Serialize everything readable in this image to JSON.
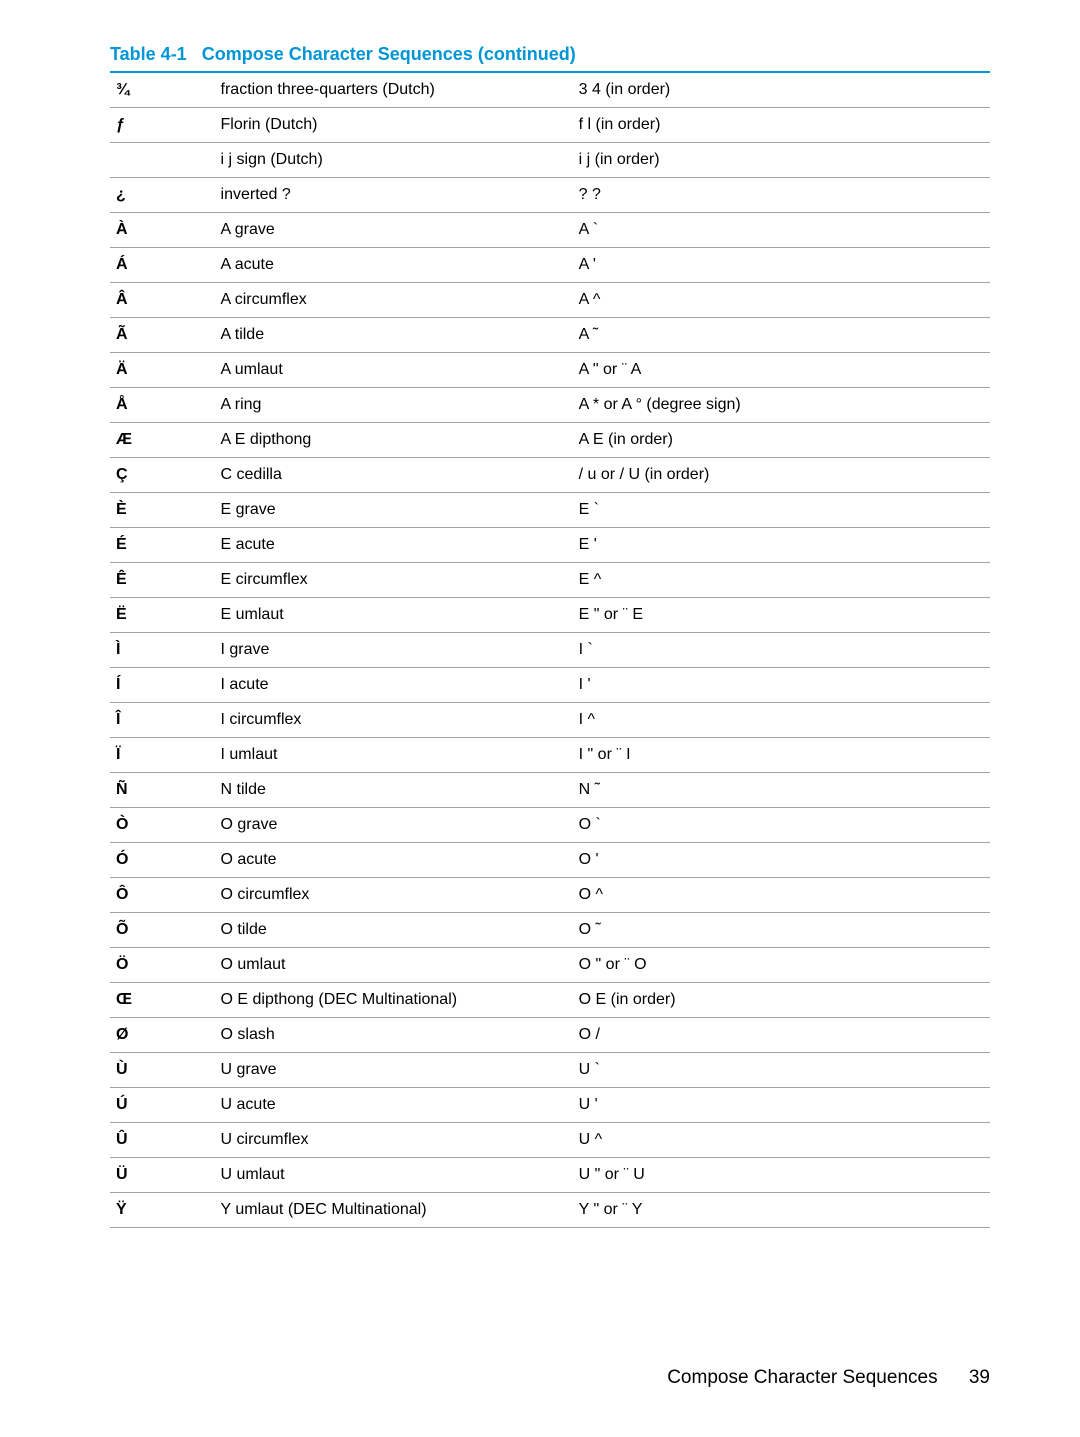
{
  "caption": {
    "label": "Table 4-1",
    "title": "Compose Character Sequences (continued)",
    "color": "#0096d6"
  },
  "table": {
    "border_color": "#9fa5a9",
    "header_border_color": "#0096d6",
    "columns": [
      "char",
      "name",
      "sequence"
    ],
    "rows": [
      {
        "char": "¾",
        "name": "fraction three-quarters (Dutch)",
        "seq": "3 4 (in order)"
      },
      {
        "char": "ƒ",
        "name": "Florin (Dutch)",
        "seq": "f l (in order)"
      },
      {
        "char": "",
        "name": "i j sign (Dutch)",
        "seq": "i j (in order)"
      },
      {
        "char": "¿",
        "name": "inverted ?",
        "seq": "? ?"
      },
      {
        "char": "À",
        "name": "A grave",
        "seq": "A `"
      },
      {
        "char": "Á",
        "name": "A acute",
        "seq": "A '"
      },
      {
        "char": "Â",
        "name": "A circumflex",
        "seq": "A ^"
      },
      {
        "char": "Ã",
        "name": "A tilde",
        "seq": "A ˜"
      },
      {
        "char": "Ä",
        "name": "A umlaut",
        "seq": "A \" or ¨ A"
      },
      {
        "char": "Å",
        "name": "A ring",
        "seq": "A * or A ° (degree sign)"
      },
      {
        "char": "Æ",
        "name": "A E dipthong",
        "seq": "A E (in order)"
      },
      {
        "char": "Ç",
        "name": "C cedilla",
        "seq": "/ u or / U (in order)"
      },
      {
        "char": "È",
        "name": "E grave",
        "seq": "E `"
      },
      {
        "char": "É",
        "name": "E acute",
        "seq": "E '"
      },
      {
        "char": "Ê",
        "name": "E circumflex",
        "seq": "E ^"
      },
      {
        "char": "Ë",
        "name": "E umlaut",
        "seq": "E \" or ¨ E"
      },
      {
        "char": "Ì",
        "name": "I grave",
        "seq": "I `"
      },
      {
        "char": "Í",
        "name": "I acute",
        "seq": "I '"
      },
      {
        "char": "Î",
        "name": "I circumflex",
        "seq": "I ^"
      },
      {
        "char": "Ï",
        "name": "I umlaut",
        "seq": "I \" or ¨ I"
      },
      {
        "char": "Ñ",
        "name": "N tilde",
        "seq": "N ˜"
      },
      {
        "char": "Ò",
        "name": "O grave",
        "seq": "O `"
      },
      {
        "char": "Ó",
        "name": "O acute",
        "seq": "O '"
      },
      {
        "char": "Ô",
        "name": "O circumflex",
        "seq": "O ^"
      },
      {
        "char": "Õ",
        "name": "O tilde",
        "seq": "O ˜"
      },
      {
        "char": "Ö",
        "name": "O umlaut",
        "seq": "O \" or ¨ O"
      },
      {
        "char": "Œ",
        "name": "O E dipthong (DEC Multinational)",
        "seq": "O E (in order)"
      },
      {
        "char": "Ø",
        "name": "O slash",
        "seq": "O /"
      },
      {
        "char": "Ù",
        "name": "U grave",
        "seq": "U `"
      },
      {
        "char": "Ú",
        "name": "U acute",
        "seq": "U '"
      },
      {
        "char": "Û",
        "name": "U circumflex",
        "seq": "U ^"
      },
      {
        "char": "Ü",
        "name": "U umlaut",
        "seq": "U \" or ¨ U"
      },
      {
        "char": "Ÿ",
        "name": "Y umlaut (DEC Multinational)",
        "seq": "Y \" or ¨ Y"
      }
    ]
  },
  "footer": {
    "section": "Compose Character Sequences",
    "page": "39"
  }
}
